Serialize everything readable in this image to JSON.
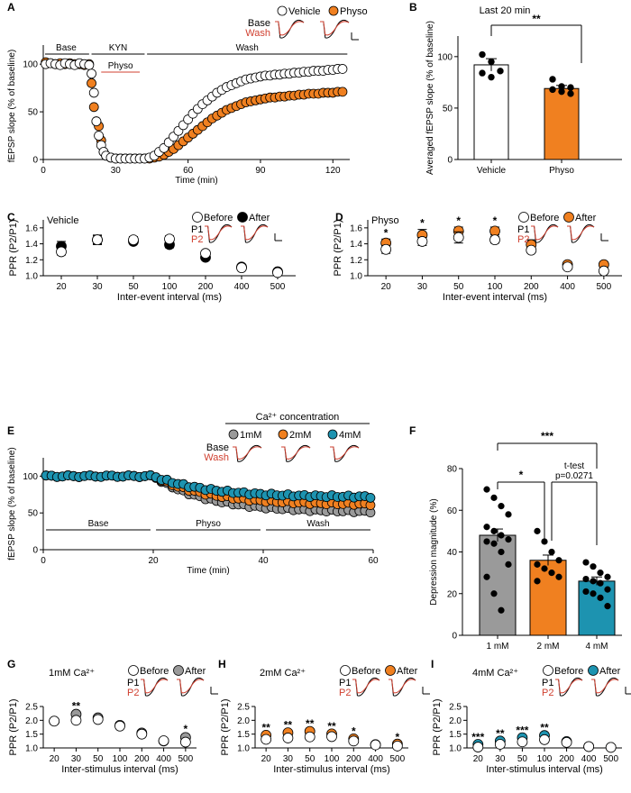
{
  "colors": {
    "vehicle": "#ffffff",
    "physo": "#f08020",
    "before": "#ffffff",
    "after_veh": "#000000",
    "ca1": "#9a9a9a",
    "ca2": "#f08020",
    "ca4": "#1d93b0",
    "trace_red": "#d04030",
    "bar_veh": "#ffffff",
    "bar_phy": "#f08020"
  },
  "panels": {
    "A": {
      "label": "A",
      "legend": [
        "Vehicle",
        "Physo"
      ],
      "trace_legend": [
        "Base",
        "Wash"
      ],
      "phases": [
        "Base",
        "KYN",
        "Physo",
        "Wash"
      ]
    },
    "B": {
      "label": "B",
      "title": "Last 20 min",
      "sig": "**"
    },
    "C": {
      "label": "C",
      "title": "Vehicle",
      "legend": [
        "Before",
        "After"
      ],
      "trace_legend": [
        "P1",
        "P2"
      ]
    },
    "D": {
      "label": "D",
      "title": "Physo",
      "legend": [
        "Before",
        "After"
      ],
      "trace_legend": [
        "P1",
        "P2"
      ]
    },
    "E": {
      "label": "E",
      "legend_title": "Ca²⁺ concentration",
      "legend": [
        "1mM",
        "2mM",
        "4mM"
      ],
      "trace_legend": [
        "Base",
        "Wash"
      ],
      "phases": [
        "Base",
        "Physo",
        "Wash"
      ]
    },
    "F": {
      "label": "F",
      "sig_top": "***",
      "sig_mid": "*",
      "ttest": "t-test",
      "pval": "p=0.0271"
    },
    "G": {
      "label": "G",
      "title": "1mM Ca²⁺",
      "legend": [
        "Before",
        "After"
      ],
      "trace_legend": [
        "P1",
        "P2"
      ]
    },
    "H": {
      "label": "H",
      "title": "2mM Ca²⁺",
      "legend": [
        "Before",
        "After"
      ],
      "trace_legend": [
        "P1",
        "P2"
      ]
    },
    "I": {
      "label": "I",
      "title": "4mM Ca²⁺",
      "legend": [
        "Before",
        "After"
      ],
      "trace_legend": [
        "P1",
        "P2"
      ]
    }
  },
  "chart_data": [
    {
      "id": "A",
      "type": "scatter",
      "xlabel": "Time (min)",
      "ylabel": "fEPSP slope (% of baseline)",
      "xlim": [
        0,
        127
      ],
      "ylim": [
        0,
        120
      ],
      "xticks": [
        0,
        30,
        60,
        90,
        120
      ],
      "yticks": [
        0,
        50,
        100
      ],
      "series": [
        {
          "name": "Vehicle",
          "color": "#ffffff",
          "x": [
            1,
            3,
            5,
            7,
            9,
            11,
            13,
            15,
            17,
            19,
            20,
            21,
            22,
            23,
            24,
            25,
            26,
            28,
            30,
            32,
            34,
            36,
            38,
            40,
            42,
            44,
            46,
            48,
            50,
            52,
            54,
            56,
            58,
            60,
            62,
            64,
            66,
            68,
            70,
            72,
            74,
            76,
            78,
            80,
            82,
            84,
            86,
            88,
            90,
            92,
            94,
            96,
            98,
            100,
            102,
            104,
            106,
            108,
            110,
            112,
            114,
            116,
            118,
            120,
            122,
            124
          ],
          "y": [
            100,
            101,
            100,
            99,
            101,
            100,
            99,
            101,
            100,
            99,
            90,
            70,
            40,
            25,
            15,
            8,
            4,
            2,
            1,
            1,
            1,
            1,
            1,
            1,
            1,
            2,
            4,
            8,
            12,
            18,
            24,
            30,
            36,
            42,
            48,
            53,
            58,
            62,
            66,
            70,
            73,
            76,
            78,
            80,
            82,
            84,
            85,
            86,
            87,
            88,
            88,
            89,
            89,
            90,
            90,
            91,
            91,
            92,
            92,
            93,
            93,
            93,
            94,
            94,
            95,
            95
          ]
        },
        {
          "name": "Physo",
          "color": "#f08020",
          "x": [
            1,
            3,
            5,
            7,
            9,
            11,
            13,
            15,
            17,
            19,
            20,
            21,
            22,
            23,
            24,
            25,
            26,
            28,
            30,
            32,
            34,
            36,
            38,
            40,
            42,
            44,
            46,
            48,
            50,
            52,
            54,
            56,
            58,
            60,
            62,
            64,
            66,
            68,
            70,
            72,
            74,
            76,
            78,
            80,
            82,
            84,
            86,
            88,
            90,
            92,
            94,
            96,
            98,
            100,
            102,
            104,
            106,
            108,
            110,
            112,
            114,
            116,
            118,
            120,
            122,
            124
          ],
          "y": [
            102,
            101,
            100,
            101,
            100,
            101,
            100,
            100,
            99,
            100,
            80,
            55,
            40,
            35,
            20,
            8,
            4,
            2,
            1,
            1,
            1,
            1,
            1,
            1,
            1,
            1,
            2,
            3,
            5,
            8,
            11,
            15,
            19,
            23,
            27,
            31,
            35,
            39,
            43,
            46,
            49,
            52,
            54,
            56,
            58,
            60,
            61,
            62,
            63,
            64,
            65,
            65,
            66,
            66,
            67,
            67,
            68,
            68,
            69,
            69,
            69,
            70,
            70,
            70,
            71,
            71
          ]
        }
      ]
    },
    {
      "id": "B",
      "type": "bar",
      "ylabel": "Averaged fEPSP slope (% of baseline)",
      "categories": [
        "Vehicle",
        "Physo"
      ],
      "ylim": [
        0,
        120
      ],
      "yticks": [
        0,
        50,
        100
      ],
      "values": [
        92,
        69
      ],
      "errors": [
        6,
        3
      ],
      "points": [
        [
          102,
          95,
          86,
          84,
          80
        ],
        [
          78,
          71,
          70,
          68,
          66,
          64
        ]
      ]
    },
    {
      "id": "C",
      "type": "scatter",
      "xlabel": "Inter-event interval (ms)",
      "ylabel": "PPR (P2/P1)",
      "categories": [
        "20",
        "30",
        "50",
        "100",
        "200",
        "400",
        "500"
      ],
      "ylim": [
        1.0,
        1.7
      ],
      "yticks": [
        1.0,
        1.2,
        1.4,
        1.6
      ],
      "series": [
        {
          "name": "Before",
          "values": [
            1.3,
            1.45,
            1.45,
            1.46,
            1.28,
            1.1,
            1.04
          ],
          "errors": [
            0.04,
            0.05,
            0.04,
            0.04,
            0.02,
            0.03,
            0.02
          ]
        },
        {
          "name": "After",
          "values": [
            1.37,
            1.45,
            1.43,
            1.39,
            1.23,
            1.11,
            1.05
          ],
          "errors": [
            0.06,
            0.06,
            0.03,
            0.04,
            0.03,
            0.03,
            0.02
          ]
        }
      ]
    },
    {
      "id": "D",
      "type": "scatter",
      "xlabel": "Inter-event interval (ms)",
      "ylabel": "PPR (P2/P1)",
      "categories": [
        "20",
        "30",
        "50",
        "100",
        "200",
        "400",
        "500"
      ],
      "ylim": [
        1.0,
        1.7
      ],
      "yticks": [
        1.0,
        1.2,
        1.4,
        1.6
      ],
      "sig": [
        "*",
        "*",
        "*",
        "*",
        "",
        "",
        ""
      ],
      "series": [
        {
          "name": "Before",
          "values": [
            1.33,
            1.43,
            1.48,
            1.45,
            1.32,
            1.11,
            1.06
          ],
          "errors": [
            0.05,
            0.05,
            0.07,
            0.04,
            0.03,
            0.03,
            0.02
          ]
        },
        {
          "name": "After",
          "values": [
            1.41,
            1.51,
            1.56,
            1.56,
            1.39,
            1.14,
            1.14
          ],
          "errors": [
            0.05,
            0.07,
            0.05,
            0.05,
            0.06,
            0.03,
            0.03
          ]
        }
      ]
    },
    {
      "id": "E",
      "type": "scatter",
      "xlabel": "Time (min)",
      "ylabel": "fEPSP slope (% of baseline)",
      "xlim": [
        0,
        60
      ],
      "ylim": [
        0,
        125
      ],
      "xticks": [
        0,
        20,
        40,
        60
      ],
      "yticks": [
        0,
        50,
        100
      ],
      "series": [
        {
          "name": "1mM",
          "color": "#9a9a9a",
          "start": 100,
          "end": 52
        },
        {
          "name": "2mM",
          "color": "#f08020",
          "start": 100,
          "end": 62
        },
        {
          "name": "4mM",
          "color": "#1d93b0",
          "start": 100,
          "end": 72
        }
      ]
    },
    {
      "id": "F",
      "type": "bar",
      "ylabel": "Depression magnitude (%)",
      "categories": [
        "1 mM",
        "2 mM",
        "4 mM"
      ],
      "ylim": [
        0,
        80
      ],
      "yticks": [
        0,
        20,
        40,
        60,
        80
      ],
      "values": [
        48,
        36,
        26
      ],
      "errors": [
        3,
        2.5,
        2
      ],
      "points": [
        [
          70,
          66,
          62,
          58,
          52,
          50,
          48,
          46,
          45,
          44,
          40,
          34,
          28,
          20,
          12
        ],
        [
          50,
          45,
          40,
          36,
          34,
          32,
          30,
          28,
          26
        ],
        [
          35,
          33,
          30,
          28,
          27,
          26,
          25,
          22,
          21,
          20,
          18,
          14
        ]
      ]
    },
    {
      "id": "G",
      "type": "scatter",
      "xlabel": "Inter-stimulus interval (ms)",
      "ylabel": "PPR (P2/P1)",
      "categories": [
        "20",
        "30",
        "50",
        "100",
        "200",
        "400",
        "500"
      ],
      "ylim": [
        1.0,
        2.5
      ],
      "yticks": [
        1.0,
        1.5,
        2.0,
        2.5
      ],
      "sig": [
        "",
        "**",
        "",
        "",
        "",
        "",
        "*"
      ],
      "series": [
        {
          "name": "Before",
          "values": [
            1.97,
            2.0,
            2.03,
            1.79,
            1.5,
            1.26,
            1.21
          ],
          "errors": [
            0.08,
            0.06,
            0.05,
            0.04,
            0.04,
            0.03,
            0.06
          ]
        },
        {
          "name": "After",
          "values": [
            1.97,
            2.22,
            2.09,
            1.82,
            1.54,
            1.25,
            1.38
          ],
          "errors": [
            0.08,
            0.06,
            0.08,
            0.04,
            0.04,
            0.03,
            0.08
          ]
        }
      ]
    },
    {
      "id": "H",
      "type": "scatter",
      "xlabel": "Inter-stimulus interval (ms)",
      "ylabel": "PPR (P2/P1)",
      "categories": [
        "20",
        "30",
        "50",
        "100",
        "200",
        "400",
        "500"
      ],
      "ylim": [
        1.0,
        2.5
      ],
      "yticks": [
        1.0,
        1.5,
        2.0,
        2.5
      ],
      "sig": [
        "**",
        "**",
        "**",
        "**",
        "*",
        "",
        "*"
      ],
      "series": [
        {
          "name": "Before",
          "values": [
            1.31,
            1.36,
            1.4,
            1.41,
            1.25,
            1.11,
            1.07
          ],
          "errors": [
            0.03,
            0.03,
            0.03,
            0.03,
            0.03,
            0.02,
            0.02
          ]
        },
        {
          "name": "After",
          "values": [
            1.46,
            1.55,
            1.6,
            1.51,
            1.33,
            1.12,
            1.14
          ],
          "errors": [
            0.05,
            0.05,
            0.05,
            0.04,
            0.04,
            0.03,
            0.03
          ]
        }
      ]
    },
    {
      "id": "I",
      "type": "scatter",
      "xlabel": "Inter-stimulus interval (ms)",
      "ylabel": "PPR (P2/P1)",
      "categories": [
        "20",
        "30",
        "50",
        "100",
        "200",
        "400",
        "500"
      ],
      "ylim": [
        1.0,
        2.5
      ],
      "yticks": [
        1.0,
        1.5,
        2.0,
        2.5
      ],
      "sig": [
        "***",
        "**",
        "***",
        "**",
        "",
        "",
        ""
      ],
      "series": [
        {
          "name": "Before",
          "values": [
            1.03,
            1.13,
            1.22,
            1.3,
            1.2,
            1.05,
            1.02
          ],
          "errors": [
            0.03,
            0.03,
            0.03,
            0.04,
            0.03,
            0.02,
            0.02
          ]
        },
        {
          "name": "After",
          "values": [
            1.13,
            1.25,
            1.37,
            1.45,
            1.23,
            1.05,
            1.02
          ],
          "errors": [
            0.04,
            0.04,
            0.04,
            0.06,
            0.03,
            0.02,
            0.02
          ]
        }
      ]
    }
  ]
}
